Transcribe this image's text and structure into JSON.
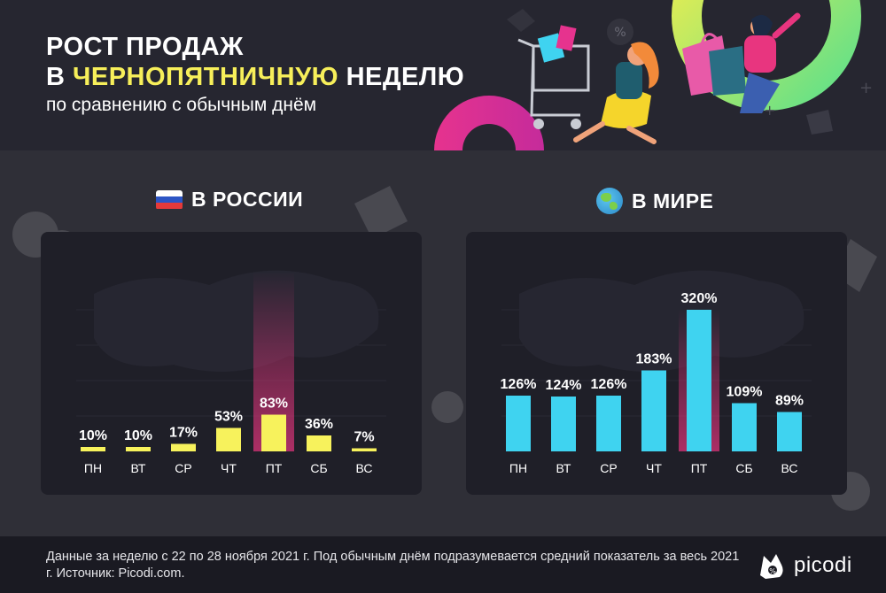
{
  "header": {
    "title_line1": "РОСТ ПРОДАЖ",
    "title_line2_prefix": "В ",
    "title_line2_highlight": "ЧЕРНОПЯТНИЧНУЮ",
    "title_line2_suffix": " НЕДЕЛЮ",
    "subtitle": "по сравнению с обычным днём"
  },
  "sections": {
    "russia_title": "В РОССИИ",
    "world_title": "В МИРЕ"
  },
  "colors": {
    "russia_bar": "#f7f25c",
    "world_bar": "#3fd3f0",
    "highlight": "#e8357f",
    "title_highlight": "#f7ef5a"
  },
  "chart_data": [
    {
      "type": "bar",
      "title": "В РОССИИ",
      "categories": [
        "ПН",
        "ВТ",
        "СР",
        "ЧТ",
        "ПТ",
        "СБ",
        "ВС"
      ],
      "values": [
        10,
        10,
        17,
        53,
        83,
        36,
        7
      ],
      "labels": [
        "10%",
        "10%",
        "17%",
        "53%",
        "83%",
        "36%",
        "7%"
      ],
      "highlight_category": "ПТ",
      "ylim": [
        0,
        320
      ],
      "xlabel": "",
      "ylabel": ""
    },
    {
      "type": "bar",
      "title": "В МИРЕ",
      "categories": [
        "ПН",
        "ВТ",
        "СР",
        "ЧТ",
        "ПТ",
        "СБ",
        "ВС"
      ],
      "values": [
        126,
        124,
        126,
        183,
        320,
        109,
        89
      ],
      "labels": [
        "126%",
        "124%",
        "126%",
        "183%",
        "320%",
        "109%",
        "89%"
      ],
      "highlight_category": "ПТ",
      "ylim": [
        0,
        320
      ],
      "xlabel": "",
      "ylabel": ""
    }
  ],
  "footer": {
    "note": "Данные за неделю с 22 по 28 ноября 2021 г. Под обычным днём подразумевается средний показатель за весь 2021 г. Источник: Picodi.com.",
    "logo_text": "picodi"
  }
}
